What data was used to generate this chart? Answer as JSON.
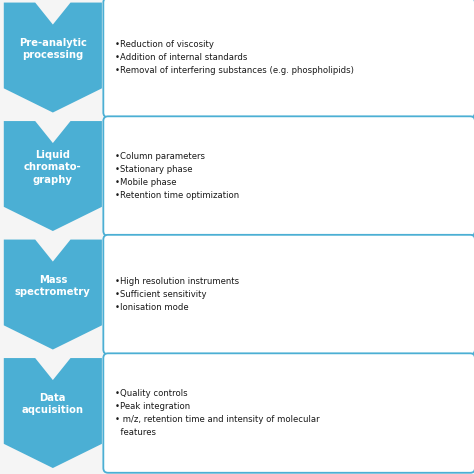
{
  "bg_color": "#f5f5f5",
  "arrow_color": "#4BAFD4",
  "box_border_color": "#4BAFD4",
  "box_fill_color": "#ffffff",
  "label_text_color": "#ffffff",
  "bullet_text_color": "#1a1a1a",
  "steps": [
    {
      "label": "Pre-analytic\nprocessing",
      "bullets": "•Reduction of viscosity\n•Addition of internal standards\n•Removal of interfering substances (e.g. phospholipids)"
    },
    {
      "label": "Liquid\nchromatо-\ngraphy",
      "bullets": "•Column parameters\n•Stationary phase\n•Mobile phase\n•Retention time optimization"
    },
    {
      "label": "Mass\nspectrometry",
      "bullets": "•High resolution instruments\n•Sufficient sensitivity\n•Ionisation mode"
    },
    {
      "label": "Data\naqcuisition",
      "bullets": "•Quality controls\n•Peak integration\n• m/z, retention time and intensity of molecular\n  features"
    }
  ],
  "figsize": [
    4.74,
    4.74
  ],
  "dpi": 100
}
